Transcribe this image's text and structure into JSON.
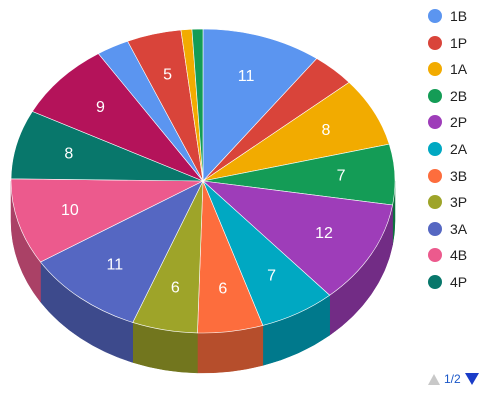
{
  "chart_data": {
    "type": "pie",
    "style": "3d",
    "slices": [
      {
        "name": "1B",
        "value": 11,
        "color": "#5b95f0",
        "label": "11"
      },
      {
        "name": "1P",
        "value": 4,
        "color": "#d9443a",
        "label": ""
      },
      {
        "name": "1A",
        "value": 8,
        "color": "#f2ab00",
        "label": "8"
      },
      {
        "name": "2B",
        "value": 7,
        "color": "#149c56",
        "label": "7"
      },
      {
        "name": "2P",
        "value": 12,
        "color": "#9e3db9",
        "label": "12"
      },
      {
        "name": "2A",
        "value": 7,
        "color": "#00a8c2",
        "label": "7"
      },
      {
        "name": "3B",
        "value": 6,
        "color": "#fd6d3d",
        "label": "6"
      },
      {
        "name": "3P",
        "value": 6,
        "color": "#9ea429",
        "label": "6"
      },
      {
        "name": "3A",
        "value": 11,
        "color": "#5567c2",
        "label": "11"
      },
      {
        "name": "4B",
        "value": 10,
        "color": "#ec5a8d",
        "label": "10"
      },
      {
        "name": "4P",
        "value": 8,
        "color": "#08776b",
        "label": "8"
      },
      {
        "name": "",
        "value": 9,
        "color": "#b4135a",
        "label": "9"
      },
      {
        "name": "",
        "value": 3,
        "color": "#5b95f0",
        "label": ""
      },
      {
        "name": "",
        "value": 5,
        "color": "#d9443a",
        "label": "5"
      },
      {
        "name": "",
        "value": 1,
        "color": "#f2ab00",
        "label": ""
      },
      {
        "name": "",
        "value": 1,
        "color": "#149c56",
        "label": ""
      }
    ],
    "legend_position": "right",
    "legend": [
      "1B",
      "1P",
      "1A",
      "2B",
      "2P",
      "2A",
      "3B",
      "3P",
      "3A",
      "4B",
      "4P"
    ]
  },
  "legend_items": [
    {
      "label": "1B",
      "color": "#5b95f0"
    },
    {
      "label": "1P",
      "color": "#d9443a"
    },
    {
      "label": "1A",
      "color": "#f2ab00"
    },
    {
      "label": "2B",
      "color": "#149c56"
    },
    {
      "label": "2P",
      "color": "#9e3db9"
    },
    {
      "label": "2A",
      "color": "#00a8c2"
    },
    {
      "label": "3B",
      "color": "#fd6d3d"
    },
    {
      "label": "3P",
      "color": "#9ea429"
    },
    {
      "label": "3A",
      "color": "#5567c2"
    },
    {
      "label": "4B",
      "color": "#ec5a8d"
    },
    {
      "label": "4P",
      "color": "#08776b"
    }
  ],
  "pager": {
    "text": "1/2",
    "prev_icon": "triangle-up-icon",
    "next_icon": "triangle-down-icon"
  }
}
